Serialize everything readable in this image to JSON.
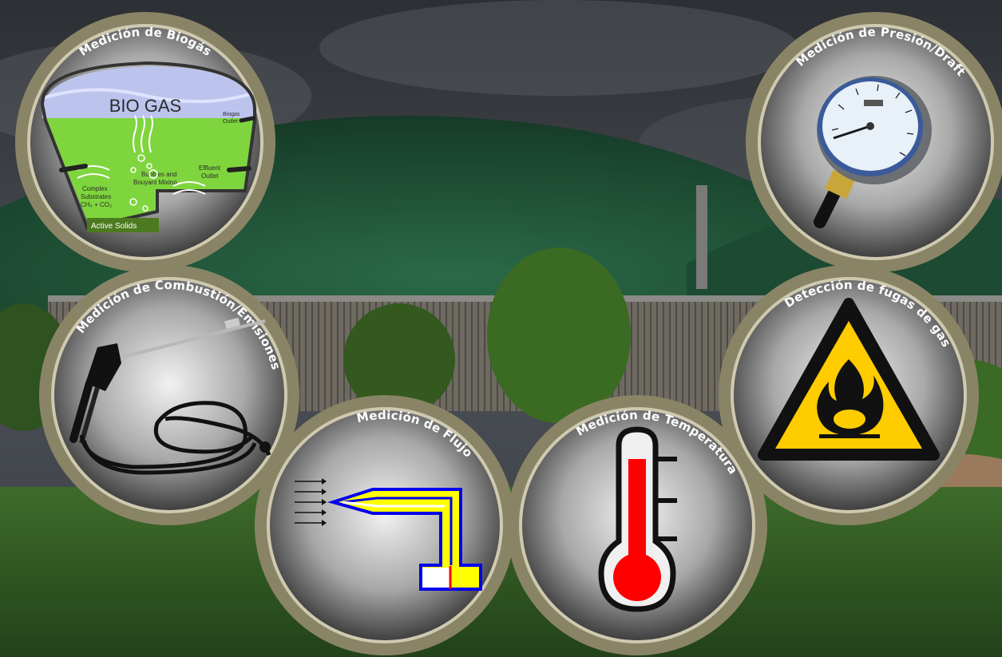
{
  "background": {
    "sky_color": "#3a3d40",
    "dome_color": "#1f4b33",
    "grass_color": "#2f5a22"
  },
  "ring_color": "#8a8466",
  "items": [
    {
      "id": "biogas",
      "title": "Medición de Biogás",
      "icon": "biogas-digester-diagram-icon",
      "diagram": {
        "heading": "BIO GAS",
        "outlet_line1": "Biogas",
        "outlet_line2": "Outlet",
        "bubbles_line1": "Bubbles and",
        "bubbles_line2": "Bouyant Mixing",
        "effluent_line1": "Effluent",
        "effluent_line2": "Outlet",
        "substrate_line1": "Complex",
        "substrate_line2": "Substrates",
        "substrate_line3": "CH₄ + CO₂",
        "solids": "Active Solids"
      }
    },
    {
      "id": "pressure",
      "title": "Medición de Presión/Draft",
      "icon": "pressure-gauge-icon"
    },
    {
      "id": "combustion",
      "title": "Medición de Combustión/Emisiones",
      "icon": "combustion-probe-icon"
    },
    {
      "id": "flow",
      "title": "Medición de Flujo",
      "icon": "pitot-tube-icon"
    },
    {
      "id": "temperature",
      "title": "Medición de Temperatura",
      "icon": "thermometer-icon"
    },
    {
      "id": "gas-leak",
      "title": "Detección de fugas de gas",
      "icon": "flammable-warning-icon"
    }
  ]
}
